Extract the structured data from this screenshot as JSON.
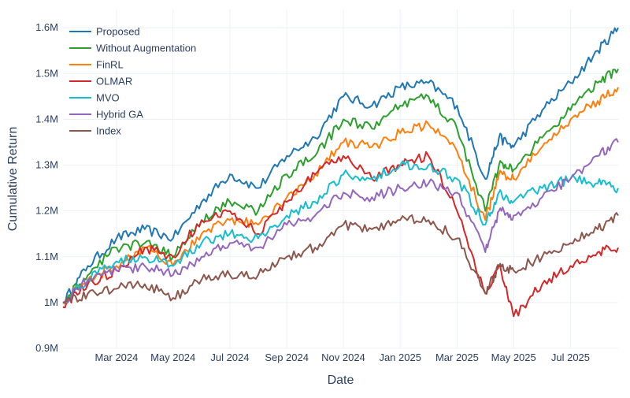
{
  "chart_data": {
    "type": "line",
    "title": "",
    "xlabel": "Date",
    "ylabel": "Cumulative Return",
    "xlim": [
      2024.01,
      2025.64
    ],
    "ylim": [
      0.9,
      1.64
    ],
    "grid": true,
    "legend_position": "top-left",
    "x_ticks": [
      {
        "label": "Mar 2024",
        "value": 2024.167
      },
      {
        "label": "May 2024",
        "value": 2024.333
      },
      {
        "label": "Jul 2024",
        "value": 2024.5
      },
      {
        "label": "Sep 2024",
        "value": 2024.667
      },
      {
        "label": "Nov 2024",
        "value": 2024.833
      },
      {
        "label": "Jan 2025",
        "value": 2025.0
      },
      {
        "label": "Mar 2025",
        "value": 2025.167
      },
      {
        "label": "May 2025",
        "value": 2025.333
      },
      {
        "label": "Jul 2025",
        "value": 2025.5
      }
    ],
    "y_ticks": [
      {
        "label": "0.9M",
        "value": 0.9
      },
      {
        "label": "1M",
        "value": 1.0
      },
      {
        "label": "1.1M",
        "value": 1.1
      },
      {
        "label": "1.2M",
        "value": 1.2
      },
      {
        "label": "1.3M",
        "value": 1.3
      },
      {
        "label": "1.4M",
        "value": 1.4
      },
      {
        "label": "1.5M",
        "value": 1.5
      },
      {
        "label": "1.6M",
        "value": 1.6
      }
    ],
    "x": [
      2024.01,
      2024.083,
      2024.167,
      2024.25,
      2024.333,
      2024.417,
      2024.5,
      2024.583,
      2024.667,
      2024.75,
      2024.833,
      2024.917,
      2025.0,
      2025.083,
      2025.167,
      2025.25,
      2025.29,
      2025.333,
      2025.417,
      2025.5,
      2025.58,
      2025.64
    ],
    "series": [
      {
        "name": "Proposed",
        "color": "#1f77b4",
        "values": [
          1.0,
          1.08,
          1.14,
          1.16,
          1.14,
          1.22,
          1.28,
          1.25,
          1.32,
          1.36,
          1.45,
          1.43,
          1.47,
          1.48,
          1.43,
          1.27,
          1.36,
          1.34,
          1.42,
          1.48,
          1.55,
          1.6
        ]
      },
      {
        "name": "Without Augmentation",
        "color": "#2ca02c",
        "values": [
          1.0,
          1.06,
          1.12,
          1.13,
          1.1,
          1.18,
          1.22,
          1.2,
          1.28,
          1.32,
          1.4,
          1.38,
          1.43,
          1.45,
          1.38,
          1.2,
          1.3,
          1.29,
          1.36,
          1.42,
          1.48,
          1.51
        ]
      },
      {
        "name": "FinRL",
        "color": "#ff7f0e",
        "values": [
          1.0,
          1.05,
          1.08,
          1.12,
          1.08,
          1.15,
          1.18,
          1.17,
          1.23,
          1.28,
          1.35,
          1.34,
          1.37,
          1.39,
          1.33,
          1.18,
          1.28,
          1.27,
          1.34,
          1.4,
          1.44,
          1.47
        ]
      },
      {
        "name": "OLMAR",
        "color": "#d62728",
        "values": [
          0.99,
          1.04,
          1.07,
          1.12,
          1.1,
          1.18,
          1.2,
          1.15,
          1.22,
          1.28,
          1.32,
          1.27,
          1.3,
          1.32,
          1.2,
          1.02,
          1.08,
          0.97,
          1.04,
          1.08,
          1.11,
          1.12
        ]
      },
      {
        "name": "MVO",
        "color": "#17becf",
        "values": [
          1.0,
          1.05,
          1.09,
          1.1,
          1.08,
          1.13,
          1.15,
          1.14,
          1.19,
          1.22,
          1.28,
          1.27,
          1.3,
          1.3,
          1.27,
          1.17,
          1.24,
          1.22,
          1.25,
          1.27,
          1.26,
          1.25
        ]
      },
      {
        "name": "Hybrid GA",
        "color": "#9467bd",
        "values": [
          1.0,
          1.05,
          1.07,
          1.08,
          1.06,
          1.1,
          1.13,
          1.12,
          1.17,
          1.19,
          1.24,
          1.23,
          1.25,
          1.26,
          1.24,
          1.11,
          1.2,
          1.19,
          1.23,
          1.27,
          1.32,
          1.35
        ]
      },
      {
        "name": "Index",
        "color": "#8c564b",
        "values": [
          1.0,
          1.02,
          1.03,
          1.04,
          1.01,
          1.05,
          1.06,
          1.06,
          1.1,
          1.12,
          1.17,
          1.16,
          1.18,
          1.18,
          1.14,
          1.02,
          1.08,
          1.07,
          1.1,
          1.13,
          1.16,
          1.19
        ]
      }
    ]
  }
}
